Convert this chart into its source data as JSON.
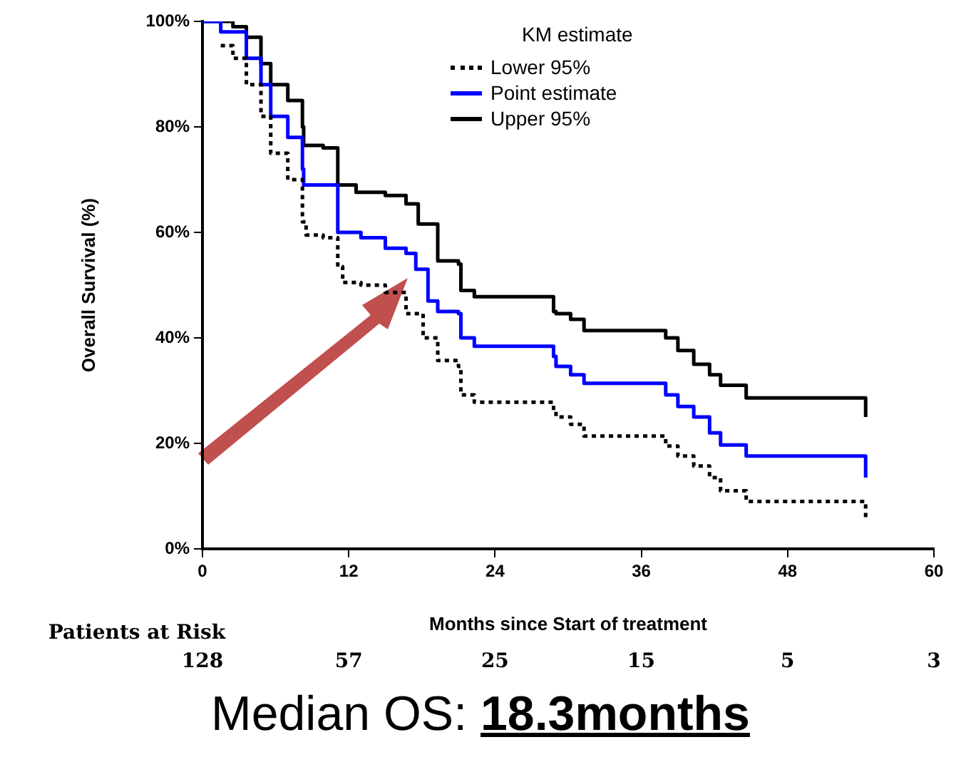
{
  "chart_data": {
    "type": "step",
    "xlabel": "Months since Start of treatment",
    "ylabel": "Overall Survival (%)",
    "legend_title": "KM estimate",
    "legend": "top right",
    "grid": false,
    "xlim": [
      0,
      60
    ],
    "xticks": [
      0,
      12,
      24,
      36,
      48,
      60
    ],
    "ylim": [
      0,
      100
    ],
    "yticks": [
      {
        "value": 0,
        "label": "0%"
      },
      {
        "value": 20,
        "label": "20%"
      },
      {
        "value": 40,
        "label": "40%"
      },
      {
        "value": 60,
        "label": "60%"
      },
      {
        "value": 80,
        "label": "80%"
      },
      {
        "value": 100,
        "label": "100%"
      }
    ],
    "series": [
      {
        "name": "Lower 95%",
        "color": "#000000",
        "line_style": "dotted",
        "x": [
          1.5,
          2.5,
          3.6,
          4.8,
          5.6,
          7,
          8.2,
          8.5,
          9.9,
          11.1,
          11.5,
          13,
          15,
          16.7,
          18.1,
          19.3,
          21,
          21.2,
          22.3,
          27.5,
          28.8,
          29,
          30.2,
          31.3,
          38,
          39,
          40.3,
          41.6,
          42.5,
          44.6,
          54.4
        ],
        "values": [
          95.4,
          93,
          88,
          82,
          75,
          70,
          62,
          59.5,
          59,
          53.5,
          50.5,
          50,
          48.6,
          44.6,
          40,
          35.7,
          34.6,
          29.2,
          27.8,
          27.8,
          26.2,
          25,
          23.6,
          21.4,
          19.5,
          17.6,
          15.7,
          13.5,
          11,
          9,
          6
        ]
      },
      {
        "name": "Point estimate",
        "color": "#0000ff",
        "line_style": "solid",
        "x": [
          0,
          1.5,
          3.6,
          4.8,
          5.6,
          7,
          8.2,
          8.3,
          9.9,
          11.1,
          13,
          15,
          16.7,
          17.5,
          18.5,
          19.3,
          21,
          21.2,
          22.3,
          27.5,
          28.8,
          29,
          30.2,
          31.3,
          38,
          39,
          40.3,
          41.6,
          42.5,
          44.6,
          54.4
        ],
        "values": [
          100,
          98,
          93,
          88,
          82,
          78,
          72,
          69,
          69,
          60,
          59,
          57,
          56,
          53,
          47,
          45,
          44.6,
          40,
          38.4,
          38.4,
          36.5,
          34.6,
          33,
          31.4,
          29.2,
          27,
          25,
          22,
          19.7,
          17.6,
          13.5
        ]
      },
      {
        "name": "Upper 95%",
        "color": "#000000",
        "line_style": "solid",
        "x": [
          0,
          2.5,
          3.6,
          4.8,
          5.6,
          7,
          8.2,
          8.3,
          9.9,
          11.1,
          12.6,
          15,
          16.7,
          17.7,
          19.3,
          21,
          21.2,
          22.3,
          27.5,
          28.8,
          29,
          30.2,
          31.3,
          38,
          39,
          40.3,
          41.6,
          42.5,
          44.6,
          54.4
        ],
        "values": [
          100,
          99,
          97,
          92,
          88,
          85,
          80,
          76.5,
          76,
          69,
          67.6,
          67,
          65.4,
          61.6,
          54.6,
          54,
          49,
          47.8,
          47.8,
          45,
          44.6,
          43.5,
          41.4,
          40,
          37.6,
          35,
          33,
          31,
          28.6,
          25
        ]
      }
    ],
    "annotations": [
      "Patients at Risk",
      "128",
      "57",
      "25",
      "15",
      "5",
      "3",
      "Median OS:",
      "18.3months"
    ]
  }
}
